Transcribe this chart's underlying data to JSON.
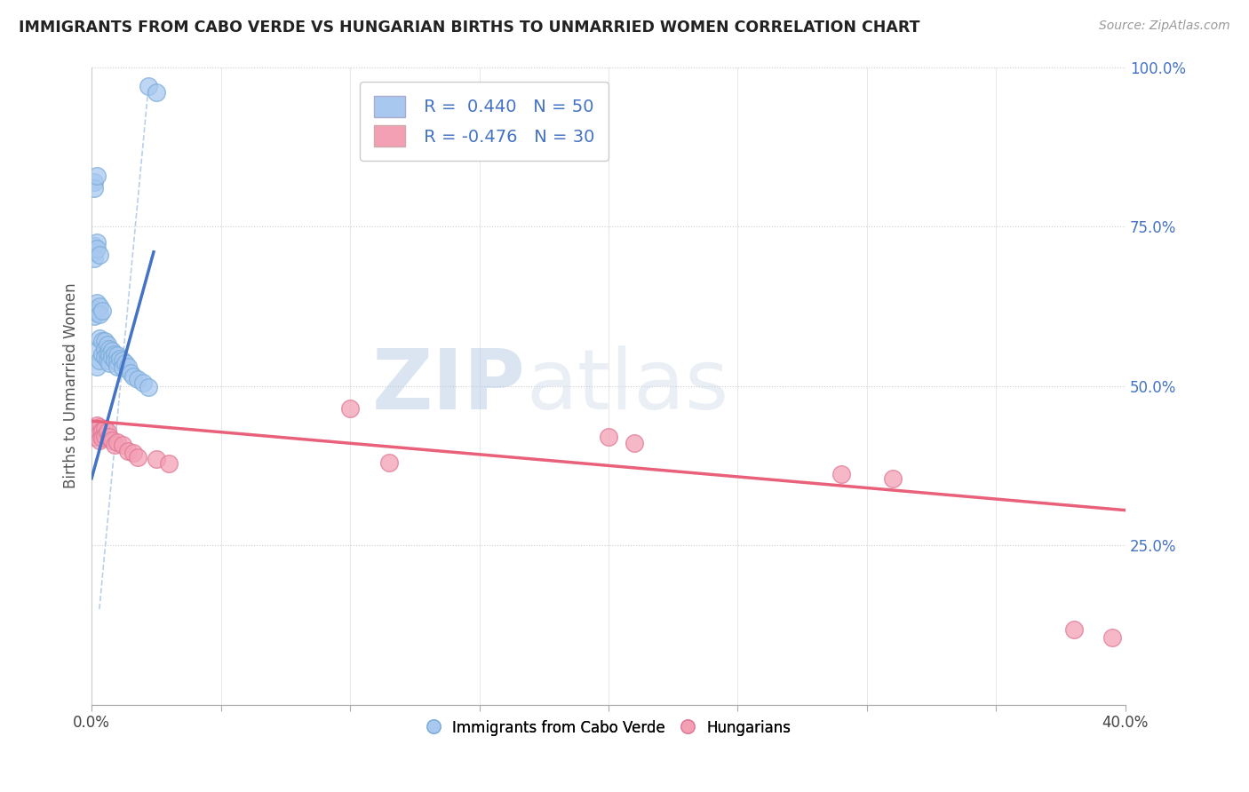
{
  "title": "IMMIGRANTS FROM CABO VERDE VS HUNGARIAN BIRTHS TO UNMARRIED WOMEN CORRELATION CHART",
  "source": "Source: ZipAtlas.com",
  "ylabel": "Births to Unmarried Women",
  "legend_label1": "Immigrants from Cabo Verde",
  "legend_label2": "Hungarians",
  "legend_R1": "R =  0.440",
  "legend_N1": "N = 50",
  "legend_R2": "R = -0.476",
  "legend_N2": "N = 30",
  "xlim": [
    0.0,
    0.4
  ],
  "ylim": [
    0.0,
    1.0
  ],
  "xticks": [
    0.0,
    0.05,
    0.1,
    0.15,
    0.2,
    0.25,
    0.3,
    0.35,
    0.4
  ],
  "xtick_labels_show": [
    0.0,
    0.4
  ],
  "yticks_right": [
    0.25,
    0.5,
    0.75,
    1.0
  ],
  "ytick_labels_right": [
    "25.0%",
    "50.0%",
    "75.0%",
    "100.0%"
  ],
  "color_blue": "#a8c8f0",
  "color_blue_edge": "#7aadd8",
  "color_pink": "#f4a0b4",
  "color_pink_edge": "#e07898",
  "color_blue_line": "#4472c4",
  "color_pink_line": "#e8607a",
  "color_diag": "#b8d0e8",
  "watermark_zip": "ZIP",
  "watermark_atlas": "atlas",
  "blue_scatter_x": [
    0.002,
    0.002,
    0.003,
    0.003,
    0.004,
    0.004,
    0.005,
    0.005,
    0.005,
    0.006,
    0.006,
    0.006,
    0.007,
    0.007,
    0.007,
    0.008,
    0.008,
    0.009,
    0.009,
    0.01,
    0.01,
    0.01,
    0.011,
    0.012,
    0.012,
    0.013,
    0.014,
    0.015,
    0.016,
    0.018,
    0.02,
    0.022,
    0.001,
    0.001,
    0.002,
    0.002,
    0.003,
    0.003,
    0.004,
    0.001,
    0.001,
    0.001,
    0.002,
    0.002,
    0.003,
    0.001,
    0.001,
    0.002,
    0.022,
    0.025
  ],
  "blue_scatter_y": [
    0.555,
    0.53,
    0.575,
    0.54,
    0.57,
    0.55,
    0.57,
    0.558,
    0.545,
    0.565,
    0.55,
    0.54,
    0.558,
    0.548,
    0.535,
    0.555,
    0.545,
    0.55,
    0.54,
    0.548,
    0.538,
    0.53,
    0.543,
    0.54,
    0.528,
    0.535,
    0.53,
    0.52,
    0.515,
    0.51,
    0.505,
    0.498,
    0.62,
    0.61,
    0.63,
    0.615,
    0.625,
    0.612,
    0.618,
    0.72,
    0.71,
    0.7,
    0.725,
    0.715,
    0.705,
    0.82,
    0.81,
    0.83,
    0.97,
    0.96
  ],
  "pink_scatter_x": [
    0.001,
    0.001,
    0.002,
    0.002,
    0.003,
    0.003,
    0.003,
    0.004,
    0.004,
    0.005,
    0.005,
    0.006,
    0.007,
    0.008,
    0.009,
    0.01,
    0.012,
    0.014,
    0.016,
    0.018,
    0.025,
    0.03,
    0.1,
    0.115,
    0.2,
    0.21,
    0.29,
    0.31,
    0.38,
    0.395
  ],
  "pink_scatter_y": [
    0.43,
    0.42,
    0.438,
    0.425,
    0.435,
    0.425,
    0.415,
    0.43,
    0.418,
    0.432,
    0.422,
    0.428,
    0.42,
    0.415,
    0.408,
    0.412,
    0.408,
    0.398,
    0.395,
    0.388,
    0.385,
    0.378,
    0.465,
    0.38,
    0.42,
    0.41,
    0.362,
    0.355,
    0.118,
    0.105
  ],
  "blue_line_x": [
    0.0,
    0.024
  ],
  "blue_line_y": [
    0.355,
    0.71
  ],
  "pink_line_x": [
    0.0,
    0.4
  ],
  "pink_line_y": [
    0.445,
    0.305
  ],
  "diag_line_x": [
    0.003,
    0.022
  ],
  "diag_line_y": [
    0.15,
    0.97
  ]
}
